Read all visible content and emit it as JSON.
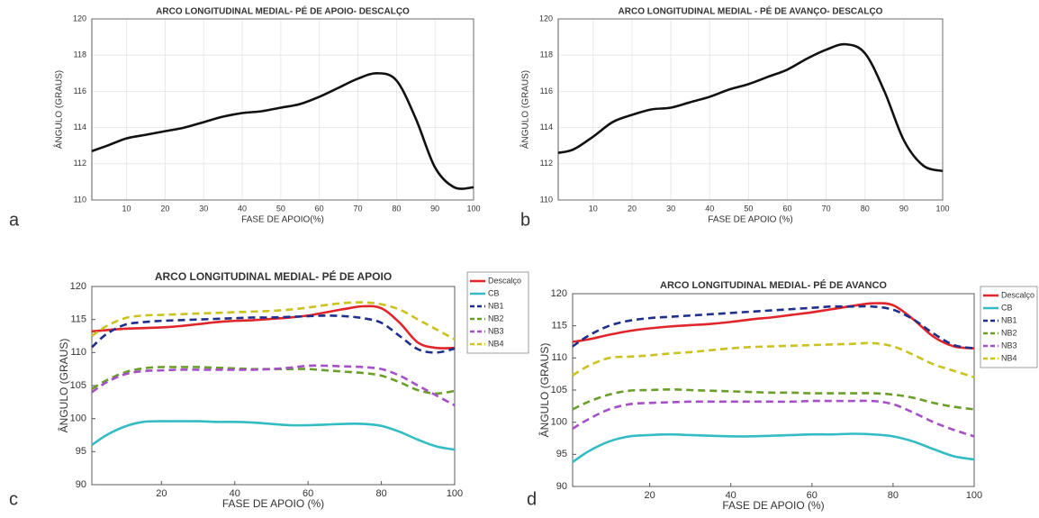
{
  "chart_data": [
    {
      "type": "line",
      "panel_label": "a",
      "title": "ARCO LONGITUDINAL MEDIAL- PÉ DE APOIO- DESCALÇO",
      "x_label": "FASE DE APOIO(%)",
      "y_label": "ÂNGULO (GRAUS)",
      "x": [
        1,
        5,
        10,
        15,
        20,
        25,
        30,
        35,
        40,
        45,
        50,
        55,
        60,
        65,
        70,
        75,
        80,
        85,
        90,
        95,
        100
      ],
      "values": [
        112.7,
        113.0,
        113.4,
        113.6,
        113.8,
        114.0,
        114.3,
        114.6,
        114.8,
        114.9,
        115.1,
        115.3,
        115.7,
        116.2,
        116.7,
        117.0,
        116.6,
        114.5,
        111.8,
        110.7,
        110.7
      ],
      "color": "#111111",
      "xlim": [
        1,
        100
      ],
      "xticks": [
        10,
        20,
        30,
        40,
        50,
        60,
        70,
        80,
        90,
        100
      ],
      "ylim": [
        110,
        120
      ],
      "yticks": [
        110,
        112,
        114,
        116,
        118,
        120
      ],
      "grid": true
    },
    {
      "type": "line",
      "panel_label": "b",
      "title": "ARCO LONGITUDINAL MEDIAL - PÉ DE AVANÇO- DESCALÇO",
      "x_label": "FASE DE APOIO (%)",
      "y_label": "ÂNGULO (GRAUS)",
      "x": [
        1,
        5,
        10,
        15,
        20,
        25,
        30,
        35,
        40,
        45,
        50,
        55,
        60,
        65,
        70,
        75,
        80,
        85,
        90,
        95,
        100
      ],
      "values": [
        112.6,
        112.8,
        113.5,
        114.3,
        114.7,
        115.0,
        115.1,
        115.4,
        115.7,
        116.1,
        116.4,
        116.8,
        117.2,
        117.8,
        118.3,
        118.6,
        118.1,
        116.0,
        113.3,
        111.9,
        111.6
      ],
      "color": "#111111",
      "xlim": [
        1,
        100
      ],
      "xticks": [
        10,
        20,
        30,
        40,
        50,
        60,
        70,
        80,
        90,
        100
      ],
      "ylim": [
        110,
        120
      ],
      "yticks": [
        110,
        112,
        114,
        116,
        118,
        120
      ],
      "grid": true
    },
    {
      "type": "line",
      "panel_label": "c",
      "title": "ARCO LONGITUDINAL MEDIAL- PÉ DE APOIO",
      "x_label": "FASE DE APOIO (%)",
      "y_label": "ÂNGULO (GRAUS)",
      "x": [
        1,
        5,
        10,
        15,
        20,
        25,
        30,
        35,
        40,
        45,
        50,
        55,
        60,
        65,
        70,
        75,
        80,
        85,
        90,
        95,
        100
      ],
      "series": [
        {
          "name": "Descalço",
          "color": "#e0262b",
          "dashed": false,
          "values": [
            113.2,
            113.4,
            113.6,
            113.7,
            113.8,
            114.0,
            114.3,
            114.6,
            114.8,
            114.9,
            115.1,
            115.3,
            115.6,
            116.1,
            116.6,
            117.0,
            116.7,
            114.5,
            111.5,
            110.7,
            110.7
          ]
        },
        {
          "name": "CB",
          "color": "#33bcc4",
          "dashed": false,
          "values": [
            96.0,
            97.5,
            98.8,
            99.5,
            99.6,
            99.6,
            99.6,
            99.5,
            99.5,
            99.4,
            99.2,
            99.0,
            99.0,
            99.1,
            99.2,
            99.2,
            98.9,
            98.0,
            96.8,
            95.8,
            95.3
          ]
        },
        {
          "name": "NB1",
          "color": "#1f2f8c",
          "dashed": true,
          "values": [
            110.8,
            112.8,
            114.2,
            114.6,
            114.8,
            114.9,
            115.0,
            115.1,
            115.2,
            115.3,
            115.3,
            115.4,
            115.5,
            115.6,
            115.5,
            115.2,
            114.5,
            112.5,
            110.5,
            110.0,
            110.6
          ]
        },
        {
          "name": "NB2",
          "color": "#6a9e2a",
          "dashed": true,
          "values": [
            104.5,
            105.8,
            107.0,
            107.6,
            107.8,
            107.8,
            107.8,
            107.7,
            107.6,
            107.5,
            107.5,
            107.5,
            107.5,
            107.3,
            107.1,
            106.9,
            106.5,
            105.5,
            104.3,
            103.8,
            104.2
          ]
        },
        {
          "name": "NB3",
          "color": "#a64fc9",
          "dashed": true,
          "values": [
            104.0,
            105.5,
            106.7,
            107.2,
            107.3,
            107.4,
            107.4,
            107.4,
            107.4,
            107.4,
            107.5,
            107.7,
            108.0,
            108.0,
            107.9,
            107.8,
            107.5,
            106.5,
            105.0,
            103.5,
            102.0
          ]
        },
        {
          "name": "NB4",
          "color": "#c9c21f",
          "dashed": true,
          "values": [
            112.5,
            114.0,
            115.2,
            115.6,
            115.7,
            115.8,
            115.9,
            116.0,
            116.1,
            116.2,
            116.3,
            116.5,
            116.8,
            117.2,
            117.5,
            117.6,
            117.3,
            116.5,
            115.0,
            113.5,
            112.0
          ]
        }
      ],
      "xlim": [
        1,
        100
      ],
      "xticks": [
        20,
        40,
        60,
        80,
        100
      ],
      "ylim": [
        90,
        120
      ],
      "yticks": [
        90,
        95,
        100,
        105,
        110,
        115,
        120
      ],
      "grid": false,
      "legend": "outside-right"
    },
    {
      "type": "line",
      "panel_label": "d",
      "title": "ARCO LONGITUDINAL MEDIAL- PÉ DE AVANCO",
      "x_label": "FASE DE APOIO (%)",
      "y_label": "ÂNGULO (GRAUS)",
      "x": [
        1,
        5,
        10,
        15,
        20,
        25,
        30,
        35,
        40,
        45,
        50,
        55,
        60,
        65,
        70,
        75,
        80,
        85,
        90,
        95,
        100
      ],
      "series": [
        {
          "name": "Descalço",
          "color": "#e0262b",
          "dashed": false,
          "values": [
            112.5,
            112.9,
            113.6,
            114.2,
            114.6,
            114.9,
            115.1,
            115.3,
            115.6,
            116.0,
            116.3,
            116.7,
            117.1,
            117.6,
            118.1,
            118.5,
            118.2,
            116.0,
            113.3,
            111.8,
            111.5
          ]
        },
        {
          "name": "CB",
          "color": "#33bcc4",
          "dashed": false,
          "values": [
            93.8,
            95.5,
            97.0,
            97.8,
            98.0,
            98.1,
            98.0,
            97.9,
            97.8,
            97.8,
            97.9,
            98.0,
            98.1,
            98.1,
            98.2,
            98.1,
            97.8,
            97.0,
            95.8,
            94.7,
            94.2
          ]
        },
        {
          "name": "NB1",
          "color": "#1f2f8c",
          "dashed": true,
          "values": [
            111.8,
            113.5,
            115.0,
            115.8,
            116.2,
            116.4,
            116.6,
            116.8,
            117.0,
            117.2,
            117.4,
            117.6,
            117.8,
            118.0,
            118.0,
            118.0,
            117.5,
            116.0,
            113.8,
            112.0,
            111.5
          ]
        },
        {
          "name": "NB2",
          "color": "#6a9e2a",
          "dashed": true,
          "values": [
            102.0,
            103.2,
            104.3,
            104.9,
            105.0,
            105.1,
            105.0,
            104.9,
            104.8,
            104.7,
            104.6,
            104.6,
            104.5,
            104.5,
            104.5,
            104.5,
            104.3,
            103.8,
            103.0,
            102.4,
            102.0
          ]
        },
        {
          "name": "NB3",
          "color": "#a64fc9",
          "dashed": true,
          "values": [
            99.0,
            100.5,
            102.0,
            102.8,
            103.0,
            103.1,
            103.2,
            103.2,
            103.2,
            103.2,
            103.2,
            103.2,
            103.3,
            103.3,
            103.3,
            103.3,
            102.8,
            101.5,
            100.0,
            98.8,
            97.8
          ]
        },
        {
          "name": "NB4",
          "color": "#c9c21f",
          "dashed": true,
          "values": [
            107.3,
            108.8,
            110.0,
            110.2,
            110.4,
            110.7,
            110.9,
            111.2,
            111.5,
            111.7,
            111.8,
            111.9,
            112.0,
            112.1,
            112.2,
            112.3,
            111.8,
            110.5,
            109.0,
            108.0,
            107.0
          ]
        }
      ],
      "xlim": [
        1,
        100
      ],
      "xticks": [
        20,
        40,
        60,
        80,
        100
      ],
      "ylim": [
        90,
        120
      ],
      "yticks": [
        90,
        95,
        100,
        105,
        110,
        115,
        120
      ],
      "grid": false,
      "legend": "outside-right"
    }
  ]
}
